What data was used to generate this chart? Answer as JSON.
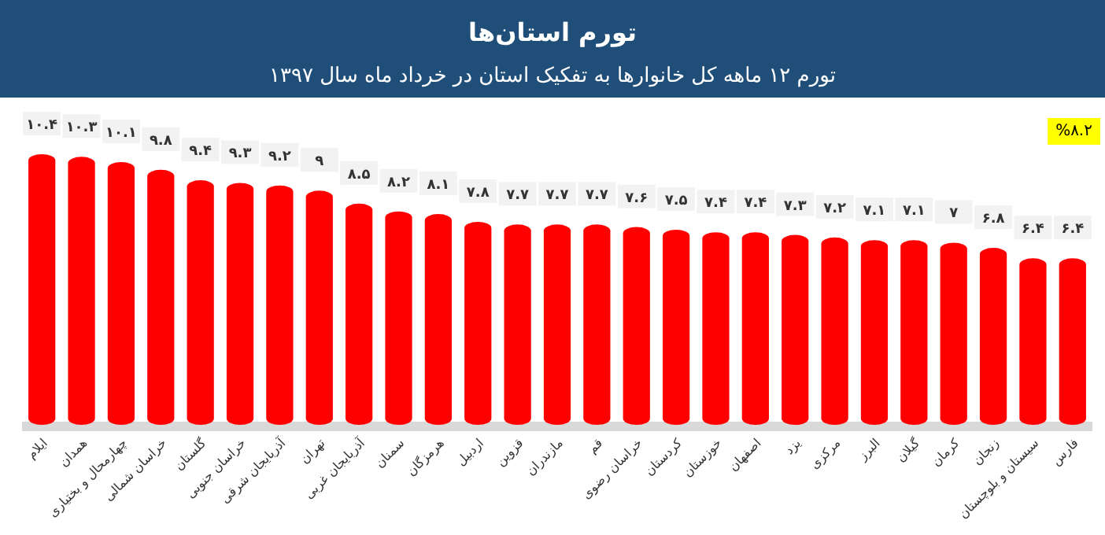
{
  "chart_data": {
    "type": "bar",
    "title": "تورم استان‌ها",
    "subtitle": "تورم ۱۲ ماهه کل خانوارها به تفکیک استان در خرداد ماه سال ۱۳۹۷",
    "categories": [
      "ایلام",
      "همدان",
      "چهارمحال و بختیاری",
      "خراسان شمالی",
      "گلستان",
      "خراسان جنوبی",
      "آذربایجان شرقی",
      "تهران",
      "آذربایجان غربی",
      "سمنان",
      "هرمزگان",
      "اردبیل",
      "قزوین",
      "مازندران",
      "قم",
      "خراسان رضوی",
      "کردستان",
      "خوزستان",
      "اصفهان",
      "یزد",
      "مرکزی",
      "البرز",
      "گیلان",
      "کرمان",
      "زنجان",
      "سیستان و بلوچستان",
      "فارس"
    ],
    "values": [
      10.4,
      10.3,
      10.1,
      9.8,
      9.4,
      9.3,
      9.2,
      9,
      8.5,
      8.2,
      8.1,
      7.8,
      7.7,
      7.7,
      7.7,
      7.6,
      7.5,
      7.4,
      7.4,
      7.3,
      7.2,
      7.1,
      7.1,
      7,
      6.8,
      6.4,
      6.4
    ],
    "value_labels": [
      "۱۰.۴",
      "۱۰.۳",
      "۱۰.۱",
      "۹.۸",
      "۹.۴",
      "۹.۳",
      "۹.۲",
      "۹",
      "۸.۵",
      "۸.۲",
      "۸.۱",
      "۷.۸",
      "۷.۷",
      "۷.۷",
      "۷.۷",
      "۷.۶",
      "۷.۵",
      "۷.۴",
      "۷.۴",
      "۷.۳",
      "۷.۲",
      "۷.۱",
      "۷.۱",
      "۷",
      "۶.۸",
      "۶.۴",
      "۶.۴"
    ],
    "color": "#ff0000",
    "annotations": [
      "%۸.۲"
    ]
  }
}
